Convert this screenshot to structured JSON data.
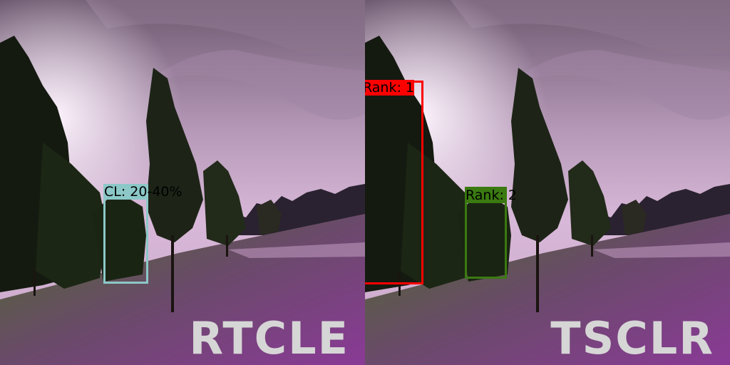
{
  "colors": {
    "rtcle_box": "#8cc8c8",
    "rank1_box": "#ff0000",
    "rank2_box": "#3a7a10",
    "title_text": "#d6d6d6"
  },
  "panels": [
    {
      "title": "RTCLE",
      "detections": [
        {
          "label": "CL: 20-40%"
        }
      ]
    },
    {
      "title": "TSCLR",
      "detections": [
        {
          "label": "Rank: 1"
        },
        {
          "label": "Rank: 2"
        }
      ]
    }
  ]
}
